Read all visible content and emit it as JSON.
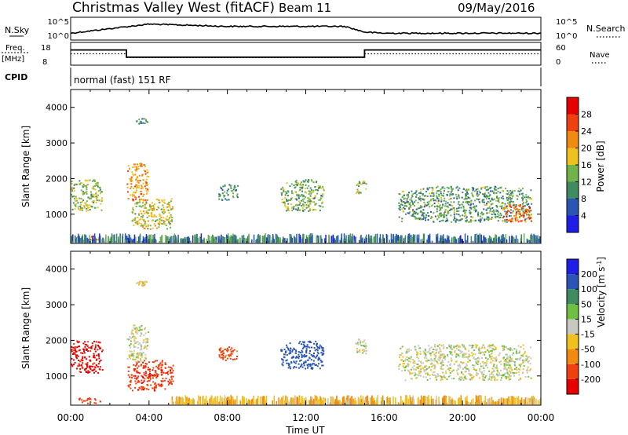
{
  "header": {
    "radar": "Christmas Valley West (fitACF)",
    "beam": "Beam 11",
    "date": "09/May/2016",
    "program": "normal (fast) 151 RF"
  },
  "side_labels": {
    "nsky": "N.Sky",
    "nsearch": "N.Search",
    "freq": "Freq.",
    "freq_unit": "[MHz]",
    "nave": "Nave",
    "cpid": "CPID"
  },
  "colors": {
    "power_scale": [
      "#1e1ee6",
      "#2a55b4",
      "#3f8c60",
      "#6fb34a",
      "#f0c020",
      "#f08a10",
      "#f04010",
      "#e60000"
    ],
    "velocity_scale": [
      "#e60000",
      "#f04010",
      "#f08a10",
      "#f0c020",
      "#c8c8c0",
      "#6fc040",
      "#3f8c60",
      "#2a55b4",
      "#1e1ee6"
    ],
    "ground_scatter": "#b4b4b4"
  },
  "chart_data": [
    {
      "type": "line",
      "panel": "noise",
      "ylabel": "N.Sky",
      "right_label": "N.Search",
      "yticks": [
        "10^5",
        "10^0"
      ],
      "right_yticks": [
        "10^5",
        "10^0"
      ],
      "x": [
        0,
        4,
        6,
        8,
        10,
        12,
        14,
        15,
        16,
        18,
        20,
        22,
        24
      ],
      "series": [
        {
          "values": [
            0.3,
            0.7,
            0.65,
            0.6,
            0.6,
            0.6,
            0.6,
            0.35,
            0.3,
            0.3,
            0.3,
            0.3,
            0.3
          ]
        }
      ]
    },
    {
      "type": "line",
      "panel": "frequency",
      "ylabel": "Freq. [MHz]",
      "right_label": "Nave",
      "ylim": [
        8,
        18
      ],
      "yticks": [
        "18",
        "8"
      ],
      "right_ylim": [
        0,
        60
      ],
      "right_yticks": [
        "60",
        "0"
      ],
      "series": [
        {
          "name": "Freq.",
          "x": [
            0,
            2.85,
            2.85,
            15,
            15,
            24
          ],
          "values": [
            14.7,
            14.7,
            11.5,
            11.5,
            14.7,
            14.7
          ]
        },
        {
          "name": "Nave",
          "x": [
            0,
            2.85,
            2.85,
            15,
            15,
            24
          ],
          "values": [
            30,
            30,
            20,
            20,
            30,
            30
          ]
        }
      ]
    },
    {
      "type": "heatmap",
      "panel": "power",
      "ylabel": "Slant Range [km]",
      "ylim": [
        180,
        4500
      ],
      "yticks": [
        1000,
        2000,
        3000,
        4000
      ],
      "xlim": [
        0,
        24
      ],
      "xticks": [
        "00:00",
        "04:00",
        "08:00",
        "12:00",
        "16:00",
        "20:00",
        "00:00"
      ],
      "colorbar": {
        "label": "Power [dB]",
        "ticks": [
          4,
          8,
          12,
          16,
          20,
          24,
          28
        ],
        "range": [
          0,
          30
        ]
      },
      "regions": [
        {
          "t": [
            0.0,
            1.6
          ],
          "r": [
            1100,
            2000
          ],
          "v": 14
        },
        {
          "t": [
            0.3,
            1.5
          ],
          "r": [
            250,
            400
          ],
          "v": 24
        },
        {
          "t": [
            2.85,
            3.95
          ],
          "r": [
            1400,
            2450
          ],
          "v": 20
        },
        {
          "t": [
            3.1,
            5.2
          ],
          "r": [
            600,
            1450
          ],
          "v": 16
        },
        {
          "t": [
            3.3,
            3.9
          ],
          "r": [
            3550,
            3700
          ],
          "v": 10
        },
        {
          "t": [
            7.5,
            8.5
          ],
          "r": [
            1400,
            1850
          ],
          "v": 10
        },
        {
          "t": [
            10.7,
            12.9
          ],
          "r": [
            1100,
            2000
          ],
          "v": 12
        },
        {
          "t": [
            14.5,
            15.1
          ],
          "r": [
            1600,
            1950
          ],
          "v": 14
        },
        {
          "t": [
            16.7,
            23.5
          ],
          "r": [
            800,
            1800
          ],
          "v": 11
        },
        {
          "t": [
            22.0,
            23.5
          ],
          "r": [
            800,
            1300
          ],
          "v": 22
        },
        {
          "t": [
            0.0,
            24.0
          ],
          "r": [
            200,
            420
          ],
          "v": 8
        }
      ]
    },
    {
      "type": "heatmap",
      "panel": "velocity",
      "ylabel": "Slant Range [km]",
      "xlabel": "Time UT",
      "ylim": [
        180,
        4500
      ],
      "yticks": [
        1000,
        2000,
        3000,
        4000
      ],
      "xlim": [
        0,
        24
      ],
      "xticks": [
        "00:00",
        "04:00",
        "08:00",
        "12:00",
        "16:00",
        "20:00",
        "00:00"
      ],
      "colorbar": {
        "label": "Velocity [m s^-1]",
        "ticks": [
          "200",
          "100",
          "50",
          "15",
          "-15",
          "-50",
          "-100",
          "-200"
        ],
        "range": [
          -250,
          250
        ]
      },
      "regions": [
        {
          "t": [
            0.0,
            1.6
          ],
          "r": [
            1100,
            2000
          ],
          "v": -220
        },
        {
          "t": [
            0.3,
            1.5
          ],
          "r": [
            250,
            400
          ],
          "v": -150
        },
        {
          "t": [
            2.85,
            3.95
          ],
          "r": [
            1400,
            2450
          ],
          "v": 0
        },
        {
          "t": [
            2.9,
            5.2
          ],
          "r": [
            600,
            1450
          ],
          "v": -180
        },
        {
          "t": [
            3.3,
            3.9
          ],
          "r": [
            3550,
            3700
          ],
          "v": -30
        },
        {
          "t": [
            7.5,
            8.5
          ],
          "r": [
            1400,
            1850
          ],
          "v": -120
        },
        {
          "t": [
            10.7,
            12.9
          ],
          "r": [
            1200,
            2000
          ],
          "v": 160
        },
        {
          "t": [
            14.5,
            15.1
          ],
          "r": [
            1600,
            2050
          ],
          "v": 0
        },
        {
          "t": [
            16.7,
            23.5
          ],
          "r": [
            900,
            1900
          ],
          "v": 0
        },
        {
          "t": [
            5.0,
            24.0
          ],
          "r": [
            200,
            420
          ],
          "v": -40
        }
      ]
    }
  ]
}
